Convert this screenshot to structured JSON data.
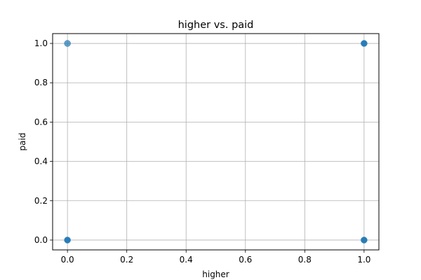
{
  "chart_data": {
    "type": "scatter",
    "title": "higher vs. paid",
    "xlabel": "higher",
    "ylabel": "paid",
    "xlim": [
      -0.05,
      1.05
    ],
    "ylim": [
      -0.05,
      1.05
    ],
    "xticks": [
      0.0,
      0.2,
      0.4,
      0.6,
      0.8,
      1.0
    ],
    "xtick_labels": [
      "0.0",
      "0.2",
      "0.4",
      "0.6",
      "0.8",
      "1.0"
    ],
    "yticks": [
      0.0,
      0.2,
      0.4,
      0.6,
      0.8,
      1.0
    ],
    "ytick_labels": [
      "0.0",
      "0.2",
      "0.4",
      "0.6",
      "0.8",
      "1.0"
    ],
    "grid": true,
    "series": [
      {
        "color": "#1f77b4",
        "points": [
          {
            "x": 0,
            "y": 1,
            "density": "light"
          },
          {
            "x": 0,
            "y": 0,
            "density": "dense"
          },
          {
            "x": 1,
            "y": 1,
            "density": "dense"
          },
          {
            "x": 1,
            "y": 0,
            "density": "dense"
          }
        ]
      }
    ]
  }
}
